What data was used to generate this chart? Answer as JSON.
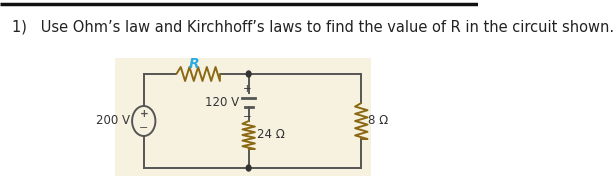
{
  "title_text": "1)   Use Ohm’s law and Kirchhoff’s laws to find the value of R in the circuit shown.",
  "title_fontsize": 10.5,
  "title_color": "#222222",
  "bg_color": "#f7f2e0",
  "wire_color": "#555555",
  "component_color": "#8B6914",
  "label_R": "R",
  "label_200V": "200 V",
  "label_120V": "120 V",
  "label_24ohm": "24 Ω",
  "label_8ohm": "8 Ω",
  "R_label_color": "#29abe2",
  "top_line_color": "#111111",
  "dot_color": "#333333",
  "text_color": "#333333"
}
